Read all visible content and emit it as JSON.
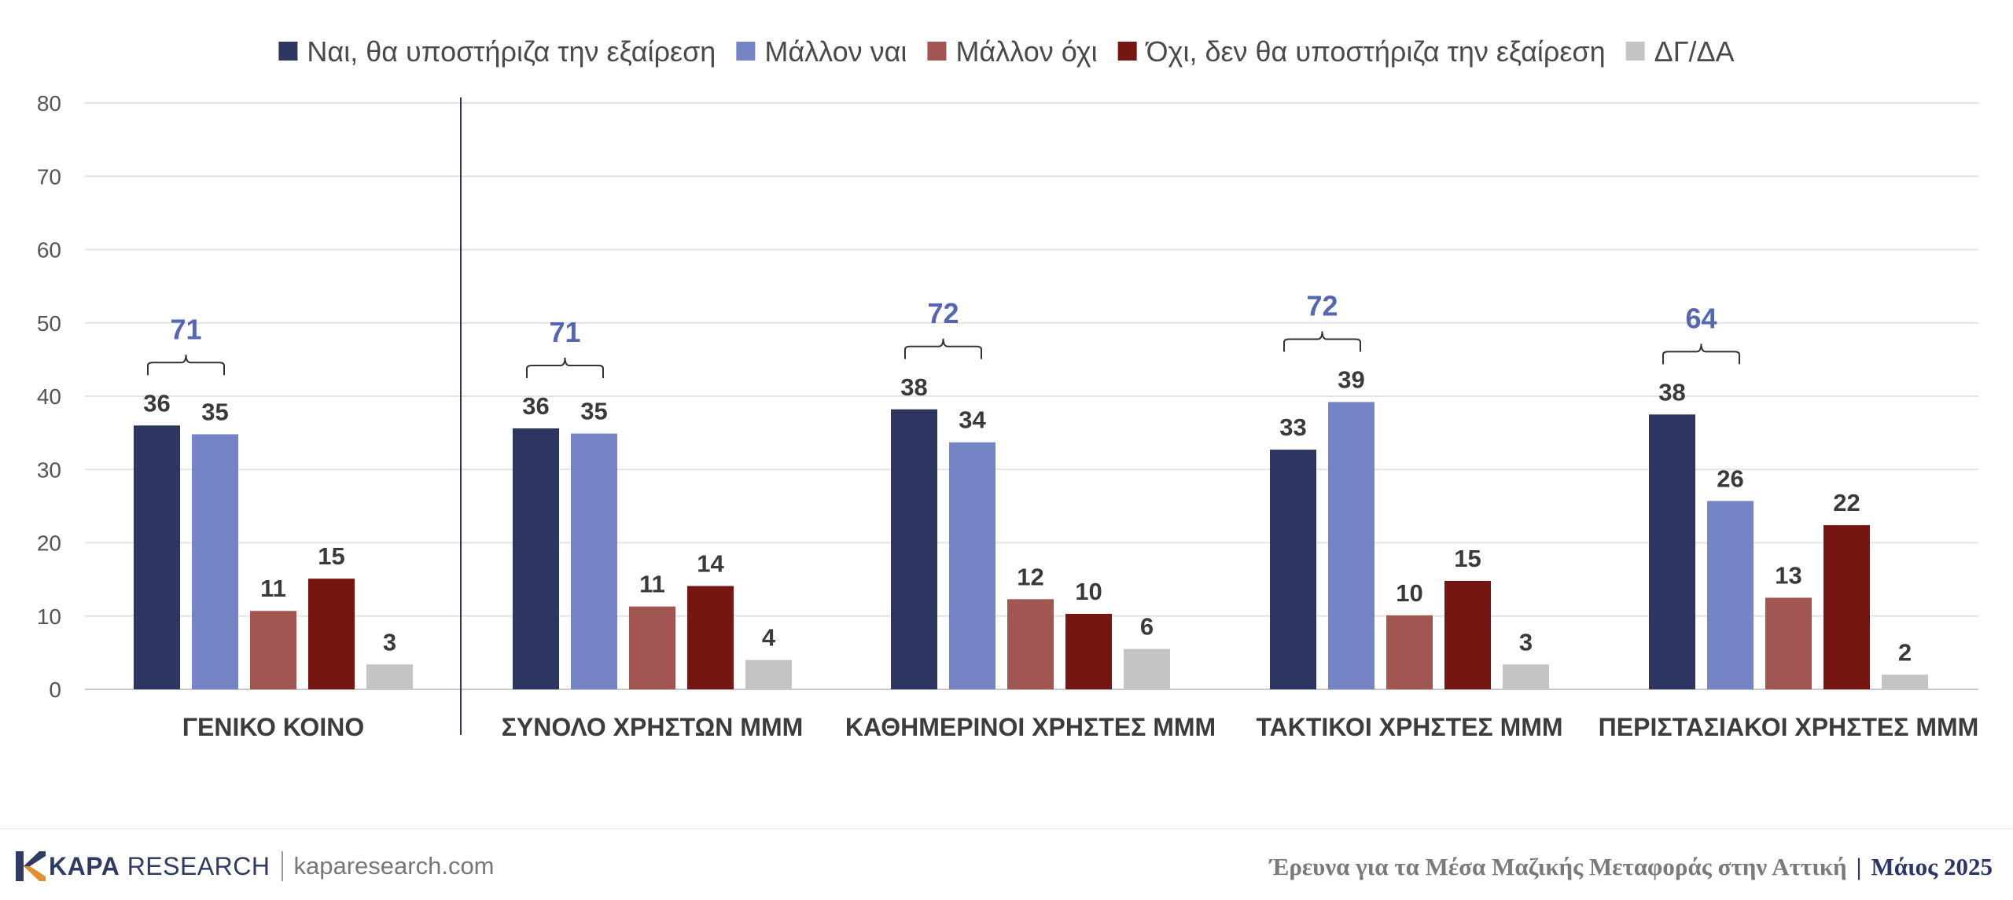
{
  "chart_data": {
    "type": "bar",
    "legend": {
      "position": "top",
      "entries": [
        {
          "label": "Ναι, θα υποστήριζα την εξαίρεση",
          "color": "#2d3561"
        },
        {
          "label": "Μάλλον ναι",
          "color": "#7584c4"
        },
        {
          "label": "Μάλλον όχι",
          "color": "#a15651"
        },
        {
          "label": "Όχι, δεν θα υποστήριζα την εξαίρεση",
          "color": "#751612"
        },
        {
          "label": "ΔΓ/ΔΑ",
          "color": "#c4c4c4"
        }
      ]
    },
    "categories": [
      "ΓΕΝΙΚΟ ΚΟΙΝΟ",
      "ΣΥΝΟΛΟ ΧΡΗΣΤΩΝ ΜΜΜ",
      "ΚΑΘΗΜΕΡΙΝΟΙ ΧΡΗΣΤΕΣ ΜΜΜ",
      "ΤΑΚΤΙΚΟΙ ΧΡΗΣΤΕΣ ΜΜΜ",
      "ΠΕΡΙΣΤΑΣΙΑΚΟΙ ΧΡΗΣΤΕΣ ΜΜΜ"
    ],
    "series": [
      {
        "name": "Ναι, θα υποστήριζα την εξαίρεση",
        "values": [
          36,
          36,
          38,
          33,
          38
        ],
        "bar_values": [
          36,
          35.6,
          38.2,
          32.7,
          37.5
        ]
      },
      {
        "name": "Μάλλον ναι",
        "values": [
          35,
          35,
          34,
          39,
          26
        ],
        "bar_values": [
          34.8,
          34.9,
          33.7,
          39.2,
          25.7
        ]
      },
      {
        "name": "Μάλλον όχι",
        "values": [
          11,
          11,
          12,
          10,
          13
        ],
        "bar_values": [
          10.7,
          11.3,
          12.3,
          10.1,
          12.5
        ]
      },
      {
        "name": "Όχι, δεν θα υποστήριζα την εξαίρεση",
        "values": [
          15,
          14,
          10,
          15,
          22
        ],
        "bar_values": [
          15.1,
          14.1,
          10.3,
          14.8,
          22.4
        ]
      },
      {
        "name": "ΔΓ/ΔΑ",
        "values": [
          3,
          4,
          6,
          3,
          2
        ],
        "bar_values": [
          3.4,
          4,
          5.5,
          3.4,
          2
        ]
      }
    ],
    "sum_labels": [
      71,
      71,
      72,
      72,
      64
    ],
    "ylim": [
      0,
      80
    ],
    "yticks": [
      0,
      10,
      20,
      30,
      40,
      50,
      60,
      70,
      80
    ],
    "grid": true,
    "xlabel": "",
    "ylabel": ""
  },
  "footer": {
    "brand_bold": "KAPA",
    "brand_rest": "RESEARCH",
    "website": "kaparesearch.com",
    "survey_title": "Έρευνα για τα Μέσα Μαζικής Μεταφοράς στην Αττική",
    "separator": "|",
    "survey_date": "Μάιος 2025"
  }
}
